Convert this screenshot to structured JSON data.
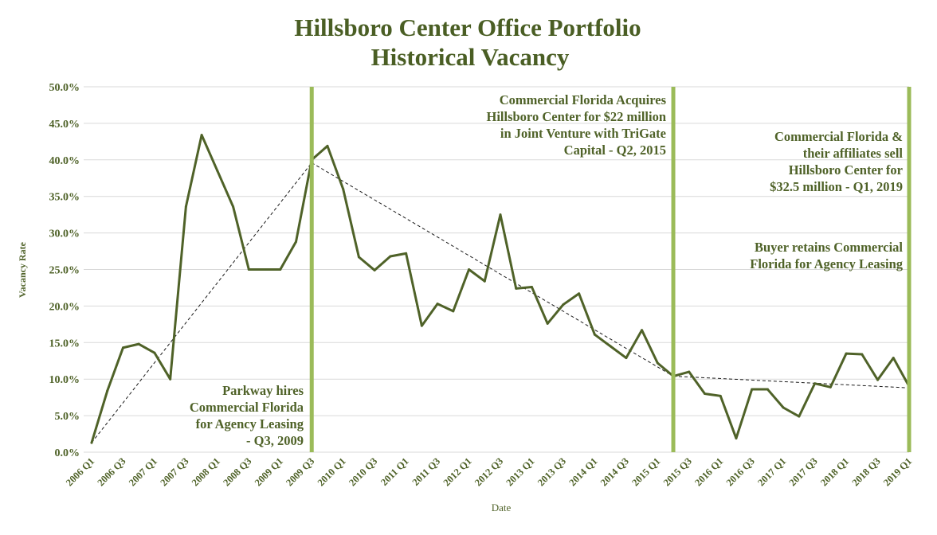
{
  "chart_data": {
    "type": "line",
    "title": [
      "Hillsboro Center Office Portfolio",
      "Historical Vacancy"
    ],
    "xlabel": "Date",
    "ylabel": "Vacancy Rate",
    "ylim": [
      0,
      50
    ],
    "y_tick_labels": [
      "0.0%",
      "5.0%",
      "10.0%",
      "15.0%",
      "20.0%",
      "25.0%",
      "30.0%",
      "35.0%",
      "40.0%",
      "45.0%",
      "50.0%"
    ],
    "x_tick_labels": [
      "2006 Q1",
      "2006 Q3",
      "2007 Q1",
      "2007 Q3",
      "2008 Q1",
      "2008 Q3",
      "2009 Q1",
      "2009 Q3",
      "2010 Q1",
      "2010 Q3",
      "2011 Q1",
      "2011 Q3",
      "2012 Q1",
      "2012 Q3",
      "2013 Q1",
      "2013 Q3",
      "2014 Q1",
      "2014 Q3",
      "2015 Q1",
      "2015 Q3",
      "2016 Q1",
      "2016 Q3",
      "2017 Q1",
      "2017 Q3",
      "2018 Q1",
      "2018 Q3",
      "2019 Q1"
    ],
    "grid": true,
    "legend": "none",
    "series": [
      {
        "x": [
          "2006 Q1",
          "2006 Q2",
          "2006 Q3",
          "2006 Q4",
          "2007 Q1",
          "2007 Q2",
          "2007 Q3",
          "2007 Q4",
          "2008 Q1",
          "2008 Q2",
          "2008 Q3",
          "2008 Q4",
          "2009 Q1",
          "2009 Q2",
          "2009 Q3",
          "2009 Q4",
          "2010 Q1",
          "2010 Q2",
          "2010 Q3",
          "2010 Q4",
          "2011 Q1",
          "2011 Q2",
          "2011 Q3",
          "2011 Q4",
          "2012 Q1",
          "2012 Q2",
          "2012 Q3",
          "2012 Q4",
          "2013 Q1",
          "2013 Q2",
          "2013 Q3",
          "2013 Q4",
          "2014 Q1",
          "2014 Q2",
          "2014 Q3",
          "2014 Q4",
          "2015 Q1",
          "2015 Q2",
          "2015 Q3",
          "2015 Q4",
          "2016 Q1",
          "2016 Q2",
          "2016 Q3",
          "2016 Q4",
          "2017 Q1",
          "2017 Q2",
          "2017 Q3",
          "2017 Q4",
          "2018 Q1",
          "2018 Q2",
          "2018 Q3",
          "2018 Q4",
          "2019 Q1"
        ],
        "values": [
          1.3,
          8.4,
          14.3,
          14.8,
          13.6,
          10.0,
          33.6,
          43.4,
          38.5,
          33.6,
          25.0,
          25.0,
          25.0,
          28.8,
          40.0,
          41.9,
          36.0,
          26.7,
          24.9,
          26.8,
          27.2,
          17.3,
          20.3,
          19.3,
          25.0,
          23.4,
          32.5,
          22.4,
          22.6,
          17.6,
          20.2,
          21.7,
          16.1,
          14.5,
          12.9,
          16.7,
          12.2,
          10.4,
          11.0,
          8.0,
          7.7,
          1.9,
          8.6,
          8.6,
          6.1,
          4.9,
          9.4,
          8.9,
          13.5,
          13.4,
          9.9,
          12.9,
          9.0
        ],
        "color": "#4f6228"
      }
    ],
    "trendlines": [
      {
        "from": {
          "x": "2006 Q1",
          "y": 1.3
        },
        "to": {
          "x": "2009 Q3",
          "y": 39.6
        }
      },
      {
        "from": {
          "x": "2009 Q3",
          "y": 39.6
        },
        "to": {
          "x": "2015 Q2",
          "y": 10.4
        }
      },
      {
        "from": {
          "x": "2015 Q2",
          "y": 10.4
        },
        "to": {
          "x": "2019 Q1",
          "y": 8.8
        }
      }
    ],
    "event_markers": [
      {
        "x": "2009 Q3",
        "color": "#9bbb59"
      },
      {
        "x": "2015 Q2",
        "color": "#9bbb59"
      },
      {
        "x": "2019 Q1",
        "color": "#9bbb59"
      }
    ],
    "annotations": [
      {
        "lines": [
          "Parkway hires",
          "Commercial Florida",
          "for Agency Leasing",
          "- Q3, 2009"
        ]
      },
      {
        "lines": [
          "Commercial Florida Acquires",
          "Hillsboro Center for $22 million",
          "in Joint Venture with TriGate",
          "Capital - Q2, 2015"
        ]
      },
      {
        "lines": [
          "Commercial Florida &",
          "their affiliates sell",
          "Hillsboro Center for",
          "$32.5 million - Q1, 2019"
        ]
      },
      {
        "lines": [
          "Buyer retains Commercial",
          "Florida for Agency Leasing"
        ]
      }
    ]
  }
}
